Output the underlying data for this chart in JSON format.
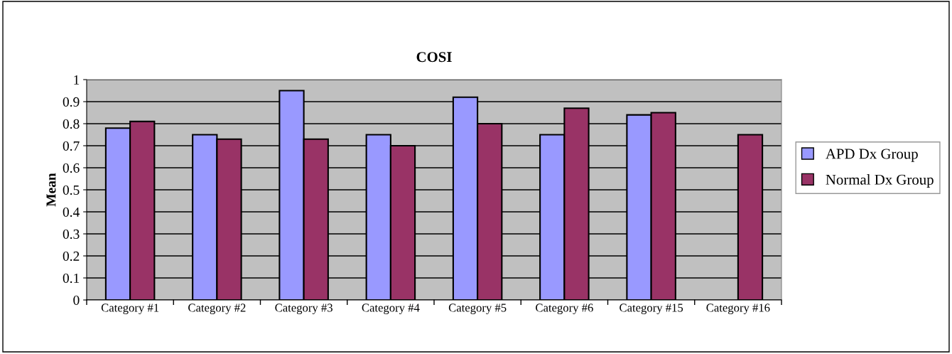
{
  "chart_data": {
    "type": "bar",
    "title": "COSI",
    "ylabel": "Mean",
    "categories": [
      "Category #1",
      "Category #2",
      "Category #3",
      "Category #4",
      "Category #5",
      "Category #6",
      "Category #15",
      "Category #16"
    ],
    "series": [
      {
        "name": "APD Dx Group",
        "color": "#9999ff",
        "values": [
          0.78,
          0.75,
          0.95,
          0.75,
          0.92,
          0.75,
          0.84,
          null
        ]
      },
      {
        "name": "Normal Dx Group",
        "color": "#993366",
        "values": [
          0.81,
          0.73,
          0.73,
          0.7,
          0.8,
          0.87,
          0.85,
          0.75
        ]
      }
    ],
    "ylim": [
      0,
      1
    ],
    "yticks": [
      0,
      0.1,
      0.2,
      0.3,
      0.4,
      0.5,
      0.6,
      0.7,
      0.8,
      0.9,
      1
    ],
    "grid": "y",
    "legend": "right"
  }
}
